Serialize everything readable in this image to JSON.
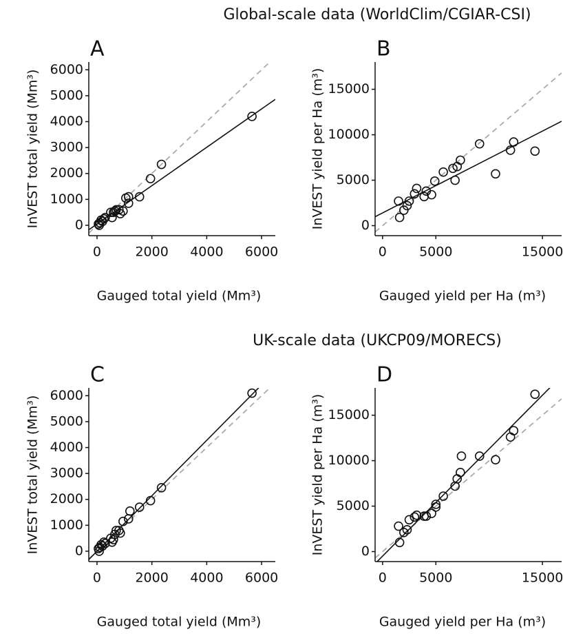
{
  "headings": [
    "Global-scale data (WorldClim/CGIAR-CSI)",
    "UK-scale data (UKCP09/MORECS)"
  ],
  "chart_data": [
    {
      "type": "scatter",
      "panel": "A",
      "xlabel": "Gauged total yield (Mm³)",
      "ylabel": "InVEST total yield (Mm³)",
      "xlim": [
        -300,
        6500
      ],
      "ylim": [
        -400,
        6300
      ],
      "xticks": [
        0,
        2000,
        4000,
        6000
      ],
      "yticks": [
        0,
        1000,
        2000,
        3000,
        4000,
        5000,
        6000
      ],
      "identity_line": true,
      "fit": {
        "slope": 0.74,
        "intercept": 50
      },
      "x": [
        5650,
        2350,
        1950,
        1550,
        1150,
        1150,
        1050,
        950,
        850,
        800,
        700,
        650,
        600,
        550,
        500,
        300,
        250,
        200,
        150,
        100,
        80,
        50
      ],
      "y": [
        4200,
        2350,
        1800,
        1100,
        850,
        1100,
        1050,
        550,
        450,
        600,
        600,
        550,
        500,
        300,
        500,
        300,
        250,
        150,
        200,
        100,
        0,
        50
      ]
    },
    {
      "type": "scatter",
      "panel": "B",
      "xlabel": "Gauged yield per Ha (m³)",
      "ylabel": "InVEST yield per Ha (m³)",
      "xlim": [
        -700,
        16800
      ],
      "ylim": [
        -1100,
        18000
      ],
      "xticks": [
        0,
        5000,
        15000
      ],
      "yticks": [
        0,
        5000,
        10000,
        15000
      ],
      "identity_line": true,
      "fit": {
        "slope": 0.6,
        "intercept": 1400
      },
      "x": [
        14300,
        12300,
        12000,
        10600,
        9100,
        7300,
        7000,
        6800,
        6600,
        5700,
        4900,
        4600,
        4100,
        3900,
        3200,
        3000,
        2500,
        2300,
        2000,
        1500,
        1600
      ],
      "y": [
        8200,
        9200,
        8300,
        5700,
        9000,
        7200,
        6500,
        5000,
        6300,
        5900,
        4900,
        3400,
        3800,
        3200,
        4100,
        3500,
        2700,
        2200,
        1700,
        2700,
        900
      ]
    },
    {
      "type": "scatter",
      "panel": "C",
      "xlabel": "Gauged total yield (Mm³)",
      "ylabel": "InVEST total yield (Mm³)",
      "xlim": [
        -300,
        6500
      ],
      "ylim": [
        -400,
        6300
      ],
      "xticks": [
        0,
        2000,
        4000,
        6000
      ],
      "yticks": [
        0,
        1000,
        2000,
        3000,
        4000,
        5000,
        6000
      ],
      "identity_line": true,
      "fit": {
        "slope": 1.07,
        "intercept": 0
      },
      "x": [
        5650,
        2350,
        1950,
        1550,
        1200,
        1150,
        950,
        850,
        800,
        700,
        650,
        600,
        550,
        500,
        300,
        250,
        200,
        150,
        100,
        80,
        50
      ],
      "y": [
        6100,
        2450,
        1950,
        1700,
        1550,
        1250,
        1150,
        700,
        800,
        800,
        650,
        450,
        350,
        500,
        300,
        350,
        200,
        250,
        150,
        0,
        100
      ]
    },
    {
      "type": "scatter",
      "panel": "D",
      "xlabel": "Gauged yield per Ha (m³)",
      "ylabel": "InVEST yield per Ha (m³)",
      "xlim": [
        -700,
        16800
      ],
      "ylim": [
        -1100,
        18000
      ],
      "xticks": [
        0,
        5000,
        15000
      ],
      "yticks": [
        0,
        5000,
        10000,
        15000
      ],
      "identity_line": true,
      "fit": {
        "slope": 1.18,
        "intercept": -500
      },
      "x": [
        14300,
        12300,
        12000,
        10600,
        9100,
        7400,
        7300,
        7000,
        6800,
        5700,
        5000,
        5000,
        4600,
        4100,
        3900,
        3200,
        3000,
        2500,
        2300,
        2000,
        1600,
        1500
      ],
      "y": [
        17300,
        13300,
        12600,
        10100,
        10500,
        10500,
        8700,
        8000,
        7200,
        6100,
        5200,
        4900,
        4200,
        3900,
        3900,
        4000,
        3800,
        3500,
        2400,
        2100,
        1000,
        2800
      ]
    }
  ]
}
